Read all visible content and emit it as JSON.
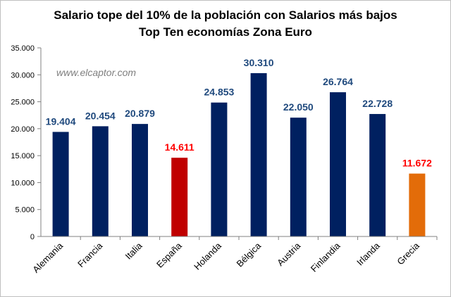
{
  "chart_data": {
    "type": "bar",
    "title": [
      "Salario tope del 10% de la población con Salarios más bajos",
      "Top Ten economías Zona Euro"
    ],
    "watermark": "www.elcaptor.com",
    "categories": [
      "Alemania",
      "Francia",
      "Italia",
      "España",
      "Holanda",
      "Bélgica",
      "Austria",
      "Finlandia",
      "Irlanda",
      "Grecia"
    ],
    "values": [
      19404,
      20454,
      20879,
      14611,
      24853,
      30310,
      22050,
      26764,
      22728,
      11672
    ],
    "value_labels": [
      "19.404",
      "20.454",
      "20.879",
      "14.611",
      "24.853",
      "30.310",
      "22.050",
      "26.764",
      "22.728",
      "11.672"
    ],
    "bar_colors": [
      "#002060",
      "#002060",
      "#002060",
      "#c00000",
      "#002060",
      "#002060",
      "#002060",
      "#002060",
      "#002060",
      "#e36c09"
    ],
    "label_colors": [
      "#1f497d",
      "#1f497d",
      "#1f497d",
      "#ff0000",
      "#1f497d",
      "#1f497d",
      "#1f497d",
      "#1f497d",
      "#1f497d",
      "#ff0000"
    ],
    "ylim": [
      0,
      35000
    ],
    "yticks": [
      0,
      5000,
      10000,
      15000,
      20000,
      25000,
      30000,
      35000
    ],
    "ytick_labels": [
      "0",
      "5.000",
      "10.000",
      "15.000",
      "20.000",
      "25.000",
      "30.000",
      "35.000"
    ],
    "xlabel": "",
    "ylabel": "",
    "grid": false,
    "legend": "none"
  }
}
